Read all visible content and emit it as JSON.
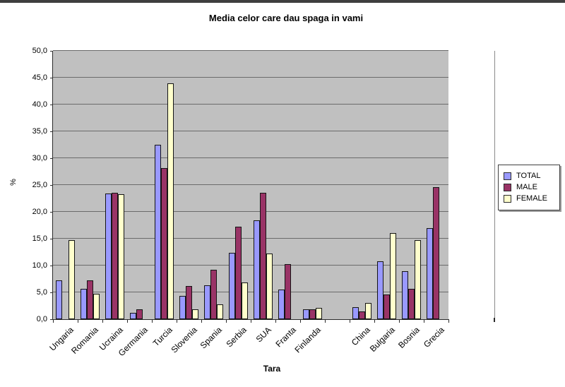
{
  "chart_data": {
    "type": "bar",
    "title": "Media celor care dau spaga in vami",
    "xlabel": "Tara",
    "ylabel": "%",
    "ylim": [
      0,
      50
    ],
    "ytick_step": 5,
    "ytick_labels": [
      "0,0",
      "5,0",
      "10,0",
      "15,0",
      "20,0",
      "25,0",
      "30,0",
      "35,0",
      "40,0",
      "45,0",
      "50,0"
    ],
    "grid": true,
    "plot_background": "#c0c0c0",
    "categories": [
      "Ungaria",
      "Romania",
      "Ucraina",
      "Germania",
      "Turcia",
      "Slovenia",
      "Spania",
      "Serbia",
      "SUA",
      "Franta",
      "Finlanda",
      "",
      "China",
      "Bulgaria",
      "Bosnia",
      "Grecia"
    ],
    "series": [
      {
        "name": "TOTAL",
        "color": "#9999ff",
        "values": [
          7.2,
          5.6,
          23.4,
          1.2,
          32.5,
          4.3,
          6.3,
          12.4,
          18.4,
          5.5,
          1.9,
          0,
          2.2,
          10.8,
          8.9,
          17.0
        ]
      },
      {
        "name": "MALE",
        "color": "#993366",
        "values": [
          0,
          7.3,
          23.6,
          1.8,
          28.1,
          6.2,
          9.2,
          17.3,
          23.6,
          10.3,
          1.9,
          0,
          1.5,
          4.6,
          5.6,
          24.6
        ]
      },
      {
        "name": "FEMALE",
        "color": "#ffffcc",
        "values": [
          14.8,
          4.7,
          23.3,
          0,
          43.9,
          1.9,
          2.7,
          6.8,
          12.3,
          0,
          2.1,
          0,
          3.0,
          16.1,
          14.8,
          0
        ]
      }
    ],
    "legend": {
      "position": "right",
      "entries": [
        "TOTAL",
        "MALE",
        "FEMALE"
      ]
    }
  }
}
